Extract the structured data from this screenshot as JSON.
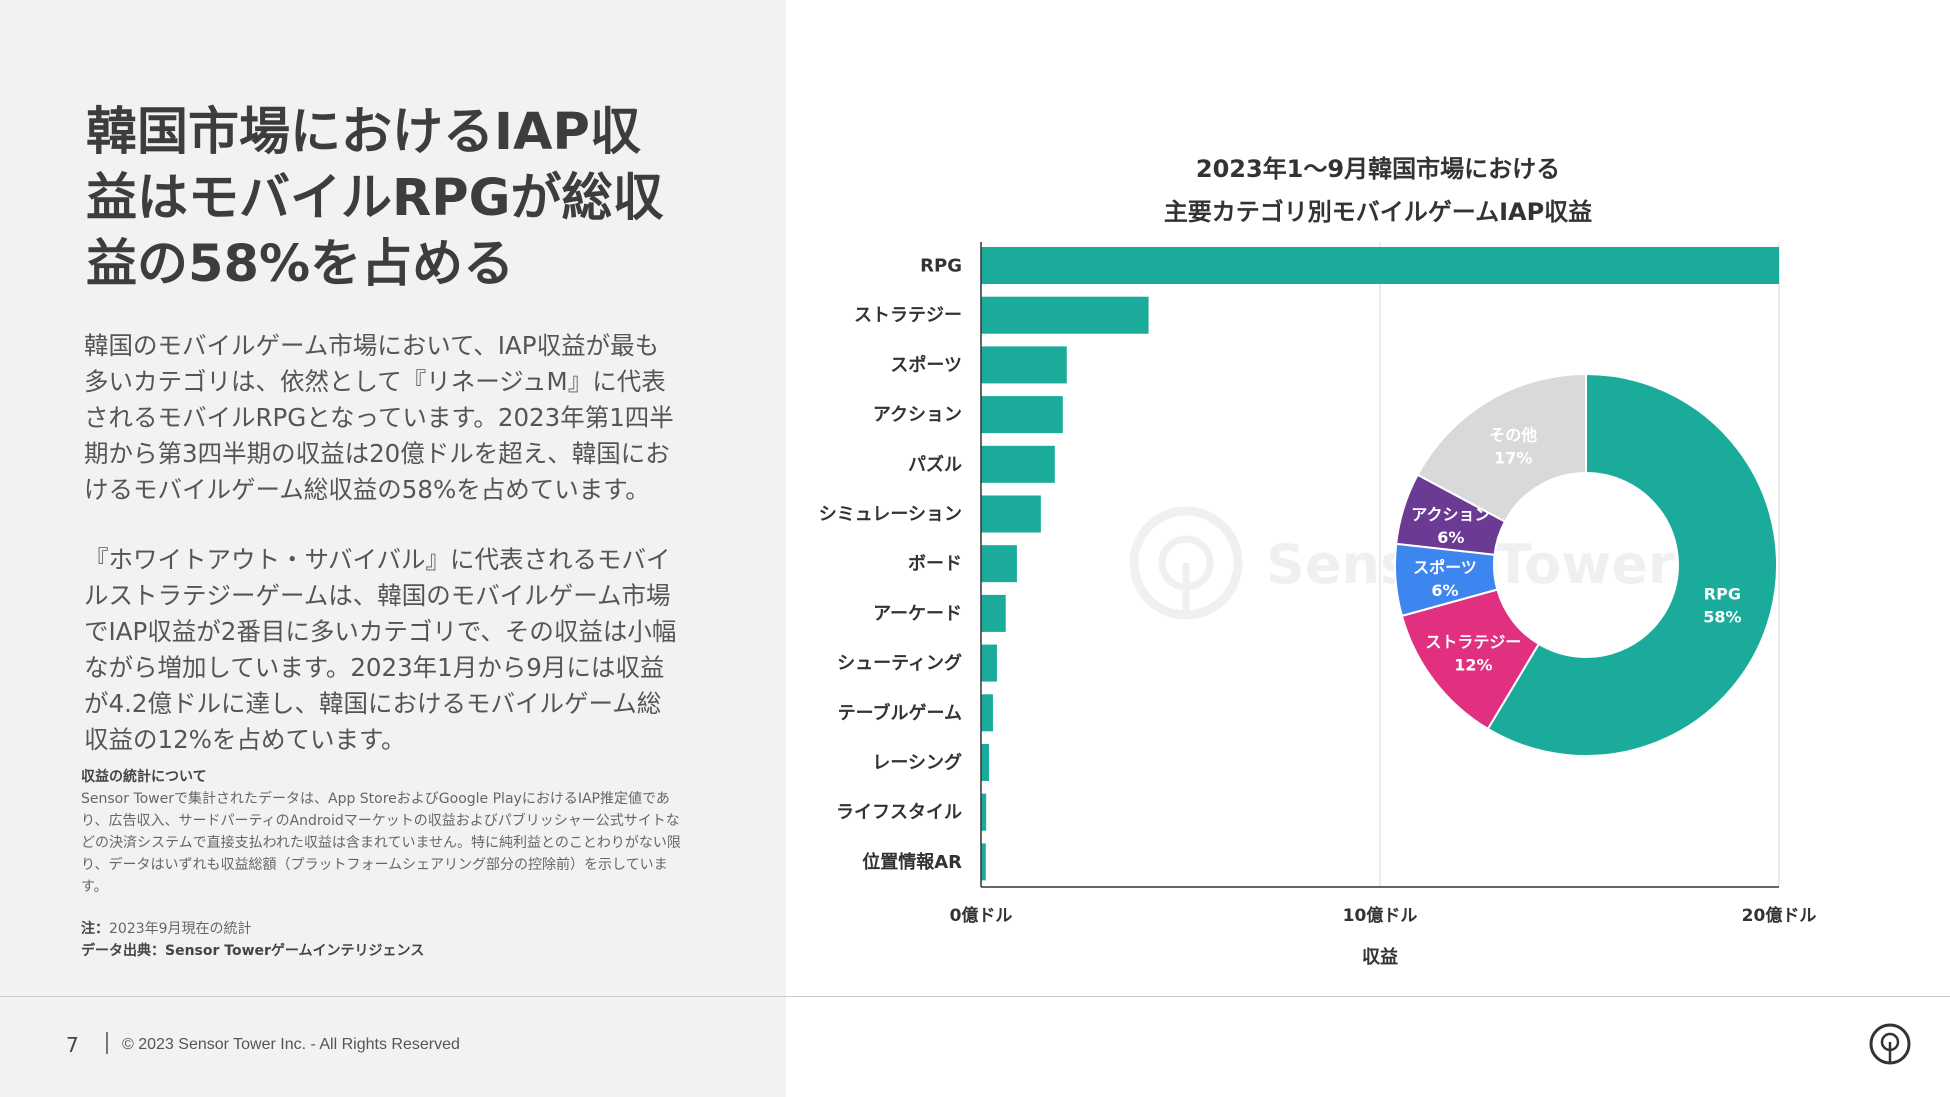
{
  "slide": {
    "headline": "韓国市場におけるIAP収益はモバイルRPGが総収益の58%を占める",
    "paragraph1": "韓国のモバイルゲーム市場において、IAP収益が最も多いカテゴリは、依然として『リネージュM』に代表されるモバイルRPGとなっています。2023年第1四半期から第3四半期の収益は20億ドルを超え、韓国におけるモバイルゲーム総収益の58%を占めています。",
    "paragraph2": "『ホワイトアウト・サバイバル』に代表されるモバイルストラテジーゲームは、韓国のモバイルゲーム市場でIAP収益が2番目に多いカテゴリで、その収益は小幅ながら増加しています。2023年1月から9月には収益が4.2億ドルに達し、韓国におけるモバイルゲーム総収益の12%を占めています。",
    "notes_title": "収益の統計について",
    "notes_text": "Sensor Towerで集計されたデータは、App StoreおよびGoogle PlayにおけるIAP推定値であり、広告収入、サードパーティのAndroidマーケットの収益およびパブリッシャー公式サイトなどの決済システムで直接支払われた収益は含まれていません。特に純利益とのことわりがない限り、データはいずれも収益総額（プラットフォームシェアリング部分の控除前）を示しています。",
    "note_label": "注：",
    "note_text": "2023年9月現在の統計",
    "source_label": "データ出典：",
    "source_text": "Sensor Towerゲームインテリジェンス",
    "page_number": "7",
    "copyright": "© 2023 Sensor Tower Inc. - All Rights Reserved"
  },
  "colors": {
    "bar": "#1aab9b",
    "pie_rpg": "#1aab9b",
    "pie_strategy": "#e0307f",
    "pie_sports": "#3d86f0",
    "pie_action": "#6b3a93",
    "pie_other": "#d9d9d9"
  },
  "chart_data": [
    {
      "type": "bar",
      "orientation": "horizontal",
      "title_line1": "2023年1〜9月韓国市場における",
      "title_line2": "主要カテゴリ別モバイルゲームIAP収益",
      "categories": [
        "RPG",
        "ストラテジー",
        "スポーツ",
        "アクション",
        "パズル",
        "シミュレーション",
        "ボード",
        "アーケード",
        "シューティング",
        "テーブルゲーム",
        "レーシング",
        "ライフスタイル",
        "位置情報AR"
      ],
      "values": [
        2.0,
        0.42,
        0.215,
        0.205,
        0.185,
        0.15,
        0.09,
        0.062,
        0.04,
        0.03,
        0.02,
        0.013,
        0.012
      ],
      "unit": "10億ドル",
      "xlim": [
        0,
        2
      ],
      "xticks": [
        0,
        1,
        2
      ],
      "xtick_labels": [
        "0億ドル",
        "10億ドル",
        "20億ドル"
      ],
      "xlabel": "収益",
      "grid": true
    },
    {
      "type": "pie",
      "donut": true,
      "slices": [
        {
          "label": "RPG",
          "value": 58,
          "pct_label": "58%",
          "color_key": "pie_rpg"
        },
        {
          "label": "ストラテジー",
          "value": 12,
          "pct_label": "12%",
          "color_key": "pie_strategy"
        },
        {
          "label": "スポーツ",
          "value": 6,
          "pct_label": "6%",
          "color_key": "pie_sports"
        },
        {
          "label": "アクション",
          "value": 6,
          "pct_label": "6%",
          "color_key": "pie_action"
        },
        {
          "label": "その他",
          "value": 17,
          "pct_label": "17%",
          "color_key": "pie_other"
        }
      ]
    }
  ],
  "watermark": "Sensor Tower"
}
